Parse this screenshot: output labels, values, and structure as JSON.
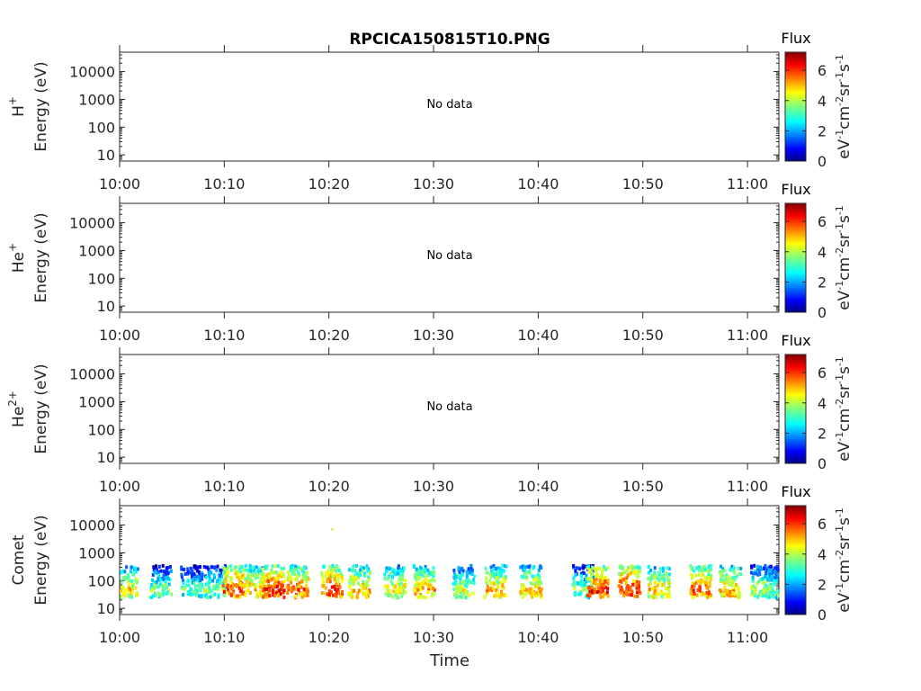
{
  "chart_data": {
    "title": "RPCICA150815T10.PNG",
    "type": "heatmap",
    "x_ticks": [
      "10:00",
      "10:10",
      "10:20",
      "10:30",
      "10:40",
      "10:50",
      "11:00"
    ],
    "xlim_minutes": [
      0,
      63
    ],
    "xlabel": "Time",
    "ylabel": "Energy (eV)",
    "y_scale": "log",
    "y_ticks": [
      "10",
      "100",
      "1000",
      "10000"
    ],
    "ylim": [
      6,
      50000
    ],
    "colorbar": {
      "title": "Flux",
      "label_main": "eV",
      "label_parts": [
        "eV",
        "-1",
        "cm",
        "-2",
        "sr",
        "-1",
        "s",
        "-1"
      ],
      "ticks": [
        "0",
        "2",
        "4",
        "6"
      ],
      "range": [
        0,
        7.2
      ],
      "colormap": "jet"
    },
    "panels": [
      {
        "species": "H",
        "species_sup": "+",
        "no_data": "No data"
      },
      {
        "species": "He",
        "species_sup": "+",
        "no_data": "No data"
      },
      {
        "species": "He",
        "species_sup": "2+",
        "no_data": "No data"
      },
      {
        "species": "Comet",
        "species_sup": "",
        "no_data": "",
        "clusters": [
          {
            "t": 0.6,
            "f": 5.5
          },
          {
            "t": 3.8,
            "f": 4.5
          },
          {
            "t": 6.8,
            "f": 4.2
          },
          {
            "t": 9.0,
            "f": 4.5
          },
          {
            "t": 10.8,
            "f": 6.8
          },
          {
            "t": 12.9,
            "f": 6.0
          },
          {
            "t": 14.6,
            "f": 7.0
          },
          {
            "t": 16.9,
            "f": 6.4
          },
          {
            "t": 20.2,
            "f": 6.8
          },
          {
            "t": 22.8,
            "f": 6.0
          },
          {
            "t": 26.2,
            "f": 5.5
          },
          {
            "t": 29.0,
            "f": 6.0
          },
          {
            "t": 32.8,
            "f": 5.0
          },
          {
            "t": 35.8,
            "f": 5.8
          },
          {
            "t": 39.2,
            "f": 5.8
          },
          {
            "t": 44.2,
            "f": 4.5
          },
          {
            "t": 45.6,
            "f": 7.0
          },
          {
            "t": 48.6,
            "f": 7.0
          },
          {
            "t": 51.4,
            "f": 5.8
          },
          {
            "t": 55.4,
            "f": 6.5
          },
          {
            "t": 58.2,
            "f": 6.0
          },
          {
            "t": 61.2,
            "f": 5.0
          },
          {
            "t": 62.4,
            "f": 4.5
          }
        ]
      }
    ]
  }
}
